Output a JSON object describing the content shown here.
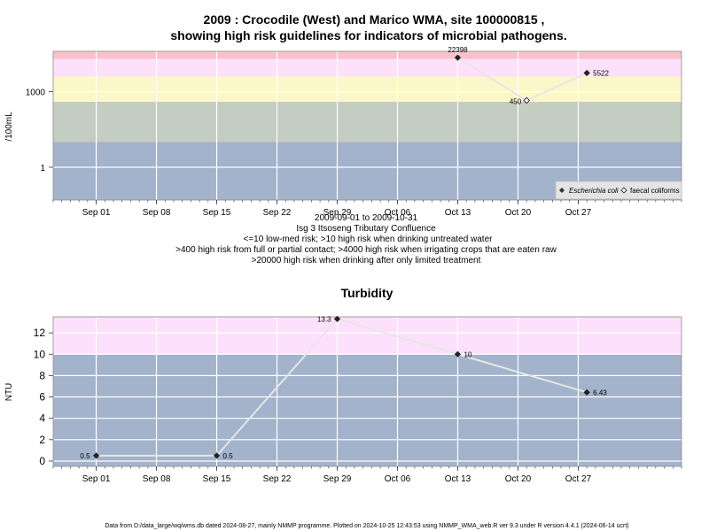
{
  "chart1": {
    "title_line1": "2009 : Crocodile (West) and Marico WMA, site 100000815 ,",
    "title_line2": "showing high risk guidelines for indicators of microbial pathogens.",
    "ylabel": "/100mL",
    "ytick_labels": [
      "1",
      "1000"
    ],
    "date_range": "2009-09-01 to 2009-10-31",
    "site_name": "Isg 3 Itsoseng Tributary Confluence",
    "notes": [
      "<=10 low-med risk; >10 high risk when drinking untreated water",
      ">400 high risk from full or partial contact; >4000 high risk when irrigating crops that are eaten raw",
      ">20000 high risk when drinking after only limited treatment"
    ],
    "legend": {
      "ecoli": "Escherichia coli",
      "faecal": "faecal coliforms"
    }
  },
  "chart2": {
    "title": "Turbidity",
    "ylabel": "NTU",
    "ytick_labels": [
      "0",
      "2",
      "4",
      "6",
      "8",
      "10",
      "12"
    ]
  },
  "xtick_labels": [
    "Sep 01",
    "Sep 08",
    "Sep 15",
    "Sep 22",
    "Sep 29",
    "Oct 06",
    "Oct 13",
    "Oct 20",
    "Oct 27"
  ],
  "footer": "Data from D:/data_large/wq/wms.db dated 2024-08-27, mainly NMMP programme. Plotted on 2024-10-25 12:43:53 using NMMP_WMA_web.R ver 9.3 under R version 4.4.1 (2024-06-14 ucrt)",
  "chart_data": [
    {
      "type": "line",
      "scale": "log",
      "x_axis": {
        "ticks": [
          "2009-09-01",
          "2009-09-08",
          "2009-09-15",
          "2009-09-22",
          "2009-09-29",
          "2009-10-06",
          "2009-10-13",
          "2009-10-20",
          "2009-10-27"
        ],
        "range": [
          "2009-08-27",
          "2009-11-08"
        ]
      },
      "ylim": [
        0.05,
        40000
      ],
      "y_ticks": [
        1,
        1000
      ],
      "bands": [
        {
          "from": 0.05,
          "to": 10,
          "color": "#a3b3cc"
        },
        {
          "from": 10,
          "to": 400,
          "color": "#c4cdc1"
        },
        {
          "from": 400,
          "to": 4000,
          "color": "#fcf7c9"
        },
        {
          "from": 4000,
          "to": 20000,
          "color": "#fde0fb"
        },
        {
          "from": 20000,
          "to": 40000,
          "color": "#f9c1cd"
        }
      ],
      "series": [
        {
          "name": "Escherichia coli",
          "marker": "filled-diamond",
          "points": [
            {
              "x": "2009-10-13",
              "y": 22398,
              "label": "22398"
            },
            {
              "x": "2009-10-28",
              "y": 5522,
              "label": "5522"
            }
          ]
        },
        {
          "name": "faecal coliforms",
          "marker": "open-diamond",
          "points": [
            {
              "x": "2009-10-21",
              "y": 450,
              "label": "450"
            }
          ]
        }
      ],
      "connecting_line": [
        "2009-10-13",
        "2009-10-21",
        "2009-10-28"
      ],
      "legend_position": "bottom-right",
      "grid": true
    },
    {
      "type": "line",
      "title": "Turbidity",
      "ylabel": "NTU",
      "x_axis": {
        "ticks": [
          "2009-09-01",
          "2009-09-08",
          "2009-09-15",
          "2009-09-22",
          "2009-09-29",
          "2009-10-06",
          "2009-10-13",
          "2009-10-20",
          "2009-10-27"
        ],
        "range": [
          "2009-08-27",
          "2009-11-08"
        ]
      },
      "ylim": [
        -0.5,
        13.5
      ],
      "y_ticks": [
        0,
        2,
        4,
        6,
        8,
        10,
        12
      ],
      "bands": [
        {
          "from": -0.5,
          "to": 10,
          "color": "#a3b3cc"
        },
        {
          "from": 10,
          "to": 13.5,
          "color": "#fde0fb"
        }
      ],
      "series": [
        {
          "name": "",
          "marker": "filled-diamond",
          "points": [
            {
              "x": "2009-09-01",
              "y": 0.5,
              "label": "0.5",
              "label_side": "left"
            },
            {
              "x": "2009-09-15",
              "y": 0.5,
              "label": "0.5",
              "label_side": "right"
            },
            {
              "x": "2009-09-29",
              "y": 13.3,
              "label": "13.3",
              "label_side": "left"
            },
            {
              "x": "2009-10-13",
              "y": 10,
              "label": "10",
              "label_side": "right"
            },
            {
              "x": "2009-10-28",
              "y": 6.43,
              "label": "6.43",
              "label_side": "right"
            }
          ]
        }
      ],
      "grid": true
    }
  ]
}
